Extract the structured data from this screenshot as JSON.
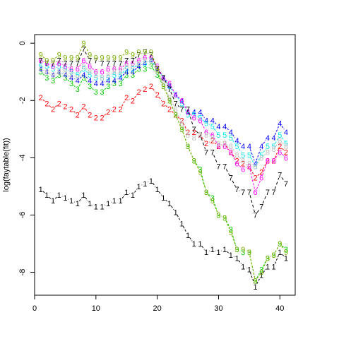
{
  "chart_data": {
    "type": "line",
    "title": "",
    "xlabel": "",
    "ylabel": "log(faytable(fit))",
    "xlim": [
      0,
      42.5
    ],
    "ylim": [
      -8.8,
      0.3
    ],
    "xticks": [
      0,
      10,
      20,
      30,
      40
    ],
    "yticks": [
      0,
      -2,
      -4,
      -6,
      -8
    ],
    "grid": false,
    "x": [
      1,
      2,
      3,
      4,
      5,
      6,
      7,
      8,
      9,
      10,
      11,
      12,
      13,
      14,
      15,
      16,
      17,
      18,
      19,
      20,
      21,
      22,
      23,
      24,
      25,
      26,
      27,
      28,
      29,
      30,
      31,
      32,
      33,
      34,
      35,
      36,
      37,
      38,
      39,
      40,
      41
    ],
    "series": [
      {
        "marker": "1",
        "color": "#000000",
        "values": [
          -5.1,
          -5.3,
          -5.5,
          -5.3,
          -5.4,
          -5.5,
          -5.6,
          -5.3,
          -5.6,
          -5.7,
          -5.7,
          -5.6,
          -5.5,
          -5.5,
          -5.2,
          -5.3,
          -5.0,
          -4.9,
          -4.8,
          -5.1,
          -5.4,
          -5.6,
          -5.9,
          -6.3,
          -6.7,
          -7.0,
          -7.0,
          -7.3,
          -7.2,
          -7.3,
          -7.2,
          -7.4,
          -7.5,
          -7.8,
          -7.9,
          -8.5,
          -8.1,
          -7.8,
          -7.8,
          -7.3,
          -7.5
        ]
      },
      {
        "marker": "2",
        "color": "#ff0000",
        "values": [
          -1.9,
          -2.1,
          -2.3,
          -2.1,
          -2.2,
          -2.3,
          -2.5,
          -2.2,
          -2.5,
          -2.6,
          -2.6,
          -2.4,
          -2.3,
          -2.3,
          -1.9,
          -2.0,
          -1.7,
          -1.6,
          -1.5,
          -1.8,
          -2.1,
          -2.3,
          -2.5,
          -2.7,
          -3.1,
          -3.1,
          -3.2,
          -3.5,
          -3.4,
          -3.6,
          -3.5,
          -3.8,
          -4.1,
          -4.2,
          -4.3,
          -4.7,
          -4.5,
          -4.1,
          -4.1,
          -3.6,
          -3.8
        ]
      },
      {
        "marker": "3",
        "color": "#00cd00",
        "values": [
          -1.0,
          -1.2,
          -1.3,
          -1.1,
          -1.2,
          -1.4,
          -1.6,
          -1.2,
          -1.5,
          -1.7,
          -1.7,
          -1.5,
          -1.4,
          -1.4,
          -1.1,
          -1.1,
          -0.9,
          -0.9,
          -0.8,
          -1.1,
          -1.5,
          -2.0,
          -2.5,
          -3.0,
          -3.6,
          -4.1,
          -4.4,
          -5.2,
          -5.4,
          -6.0,
          -6.1,
          -6.5,
          -7.2,
          -7.3,
          -7.3,
          -8.3,
          -7.9,
          -7.5,
          -7.4,
          -7.0,
          -7.2
        ]
      },
      {
        "marker": "4",
        "color": "#0000ff",
        "values": [
          -0.9,
          -1.0,
          -1.1,
          -1.0,
          -1.1,
          -1.2,
          -1.3,
          -1.1,
          -1.3,
          -1.4,
          -1.4,
          -1.3,
          -1.3,
          -1.2,
          -1.0,
          -1.0,
          -0.8,
          -0.7,
          -0.6,
          -0.9,
          -1.2,
          -1.5,
          -1.8,
          -2.0,
          -2.4,
          -2.4,
          -2.4,
          -2.7,
          -2.7,
          -2.9,
          -2.9,
          -3.1,
          -3.4,
          -3.6,
          -3.6,
          -4.2,
          -3.6,
          -3.3,
          -3.3,
          -2.8,
          -3.1
        ]
      },
      {
        "marker": "5",
        "color": "#00e5ee",
        "values": [
          -0.8,
          -0.8,
          -0.9,
          -0.8,
          -0.9,
          -1.0,
          -1.1,
          -0.9,
          -1.1,
          -1.2,
          -1.2,
          -1.2,
          -1.1,
          -1.1,
          -0.9,
          -0.9,
          -0.7,
          -0.7,
          -0.6,
          -0.9,
          -1.2,
          -1.5,
          -1.8,
          -2.1,
          -2.5,
          -2.5,
          -2.6,
          -2.8,
          -2.9,
          -3.2,
          -3.2,
          -3.3,
          -3.6,
          -3.9,
          -3.9,
          -4.3,
          -3.9,
          -3.6,
          -3.6,
          -3.2,
          -3.5
        ]
      },
      {
        "marker": "6",
        "color": "#ff00ff",
        "values": [
          -0.6,
          -0.7,
          -0.8,
          -0.7,
          -0.8,
          -0.9,
          -0.9,
          -0.6,
          -0.8,
          -1.0,
          -1.0,
          -0.9,
          -0.9,
          -0.9,
          -0.7,
          -0.7,
          -0.6,
          -0.5,
          -0.5,
          -0.8,
          -1.2,
          -1.4,
          -1.8,
          -2.0,
          -2.4,
          -2.6,
          -2.7,
          -3.1,
          -3.2,
          -3.6,
          -3.6,
          -3.8,
          -4.2,
          -4.4,
          -4.3,
          -5.2,
          -4.7,
          -4.1,
          -4.1,
          -3.8,
          -4.0
        ]
      },
      {
        "marker": "7",
        "color": "#000000",
        "dashed": true,
        "values": [
          -0.6,
          -0.7,
          -0.7,
          -0.6,
          -0.7,
          -0.7,
          -0.7,
          -0.2,
          -0.6,
          -0.6,
          -0.7,
          -0.7,
          -0.7,
          -0.7,
          -0.6,
          -0.6,
          -0.4,
          -0.3,
          -0.4,
          -0.9,
          -1.2,
          -1.6,
          -2.1,
          -2.3,
          -2.3,
          -3.0,
          -3.2,
          -3.8,
          -3.8,
          -4.3,
          -4.3,
          -4.7,
          -5.1,
          -5.2,
          -5.2,
          -6.0,
          -5.7,
          -5.2,
          -5.2,
          -4.6,
          -4.9
        ]
      },
      {
        "marker": "8",
        "color": "#bebebe",
        "values": [
          -0.9,
          -1.0,
          -1.1,
          -1.0,
          -1.0,
          -1.1,
          -1.2,
          -0.8,
          -1.0,
          -1.1,
          -1.2,
          -1.1,
          -1.0,
          -1.0,
          -0.8,
          -0.8,
          -0.7,
          -0.6,
          -0.6,
          -1.0,
          -1.4,
          -1.9,
          -2.3,
          -2.8,
          -3.2,
          -3.3,
          -3.2,
          -3.2,
          -3.3,
          -3.5,
          -3.5,
          -3.6,
          -3.9,
          -4.1,
          -4.2,
          -4.3,
          -4.0,
          -3.8,
          -3.7,
          -3.4,
          -3.6
        ]
      },
      {
        "marker": "9",
        "color": "#7cb000",
        "values": [
          -0.4,
          -0.6,
          -0.6,
          -0.4,
          -0.5,
          -0.5,
          -0.5,
          0.0,
          -0.4,
          -0.5,
          -0.5,
          -0.5,
          -0.5,
          -0.5,
          -0.3,
          -0.4,
          -0.3,
          -0.3,
          -0.3,
          -0.9,
          -1.5,
          -2.0,
          -2.5,
          -3.0,
          -3.6,
          -4.1,
          -4.5,
          -5.2,
          -5.5,
          -6.0,
          -6.1,
          -6.6,
          -7.2,
          -7.2,
          -7.3,
          -8.3,
          -8.0,
          -7.5,
          -7.4,
          -7.0,
          -7.3
        ]
      }
    ]
  }
}
